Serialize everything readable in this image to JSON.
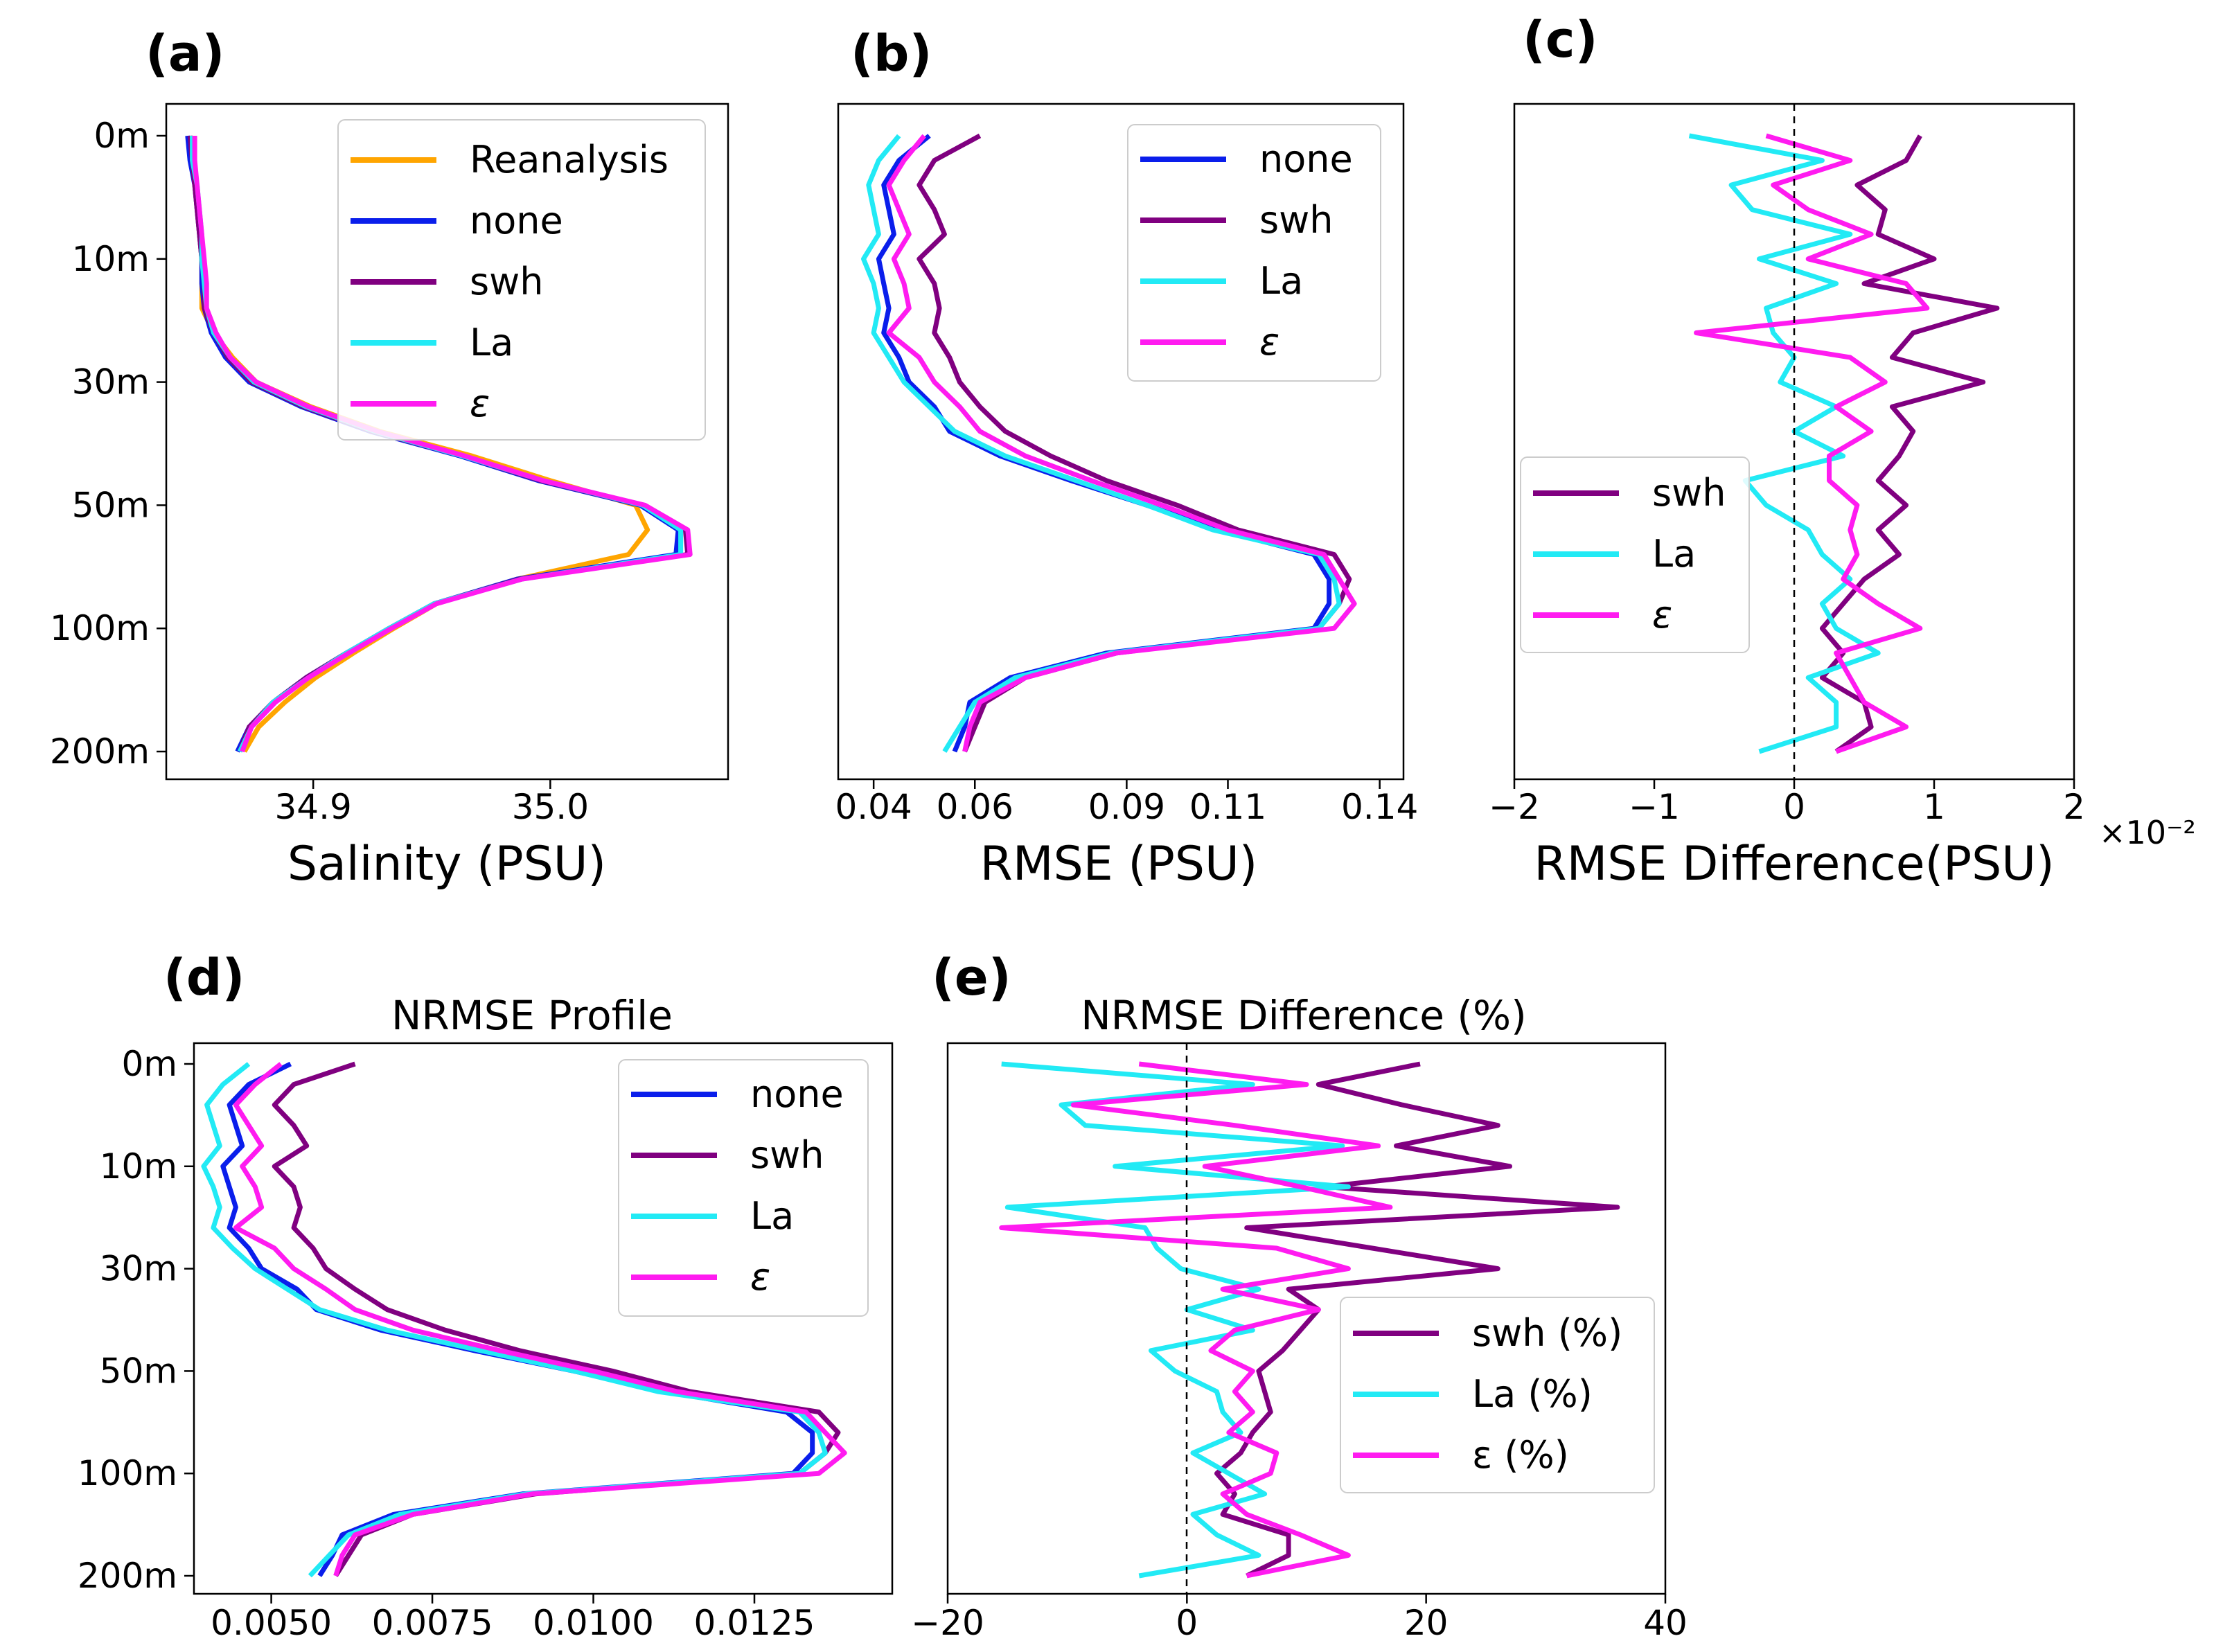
{
  "depth_ticks": [
    "0m",
    "10m",
    "30m",
    "50m",
    "100m",
    "200m"
  ],
  "colors": {
    "Reanalysis": "#FFA500",
    "none": "#0A1EEB",
    "swh": "#800080",
    "La": "#22EAF5",
    "epsilon": "#FF1BF0",
    "zero_line": "#000000"
  },
  "chart_data": [
    {
      "panel": "a",
      "panel_label": "(a)",
      "type": "line",
      "title": "",
      "xlabel": "Salinity (PSU)",
      "ylabel": "",
      "xlim": [
        34.838,
        35.075
      ],
      "xticks": [
        34.9,
        35.0
      ],
      "xtick_labels": [
        "34.9",
        "35.0"
      ],
      "y_index_range": [
        0,
        25
      ],
      "legend": "upper right",
      "legend_entries": [
        "Reanalysis",
        "none",
        "swh",
        "La",
        "ε"
      ],
      "series": [
        {
          "name": "Reanalysis",
          "x": [
            34.849,
            34.849,
            34.85,
            34.851,
            34.852,
            34.853,
            34.853,
            34.853,
            34.858,
            34.866,
            34.876,
            34.899,
            34.928,
            34.967,
            35.0,
            35.036,
            35.041,
            35.033,
            34.986,
            34.952,
            34.934,
            34.917,
            34.901,
            34.888,
            34.877,
            34.871
          ]
        },
        {
          "name": "none",
          "x": [
            34.847,
            34.848,
            34.85,
            34.851,
            34.852,
            34.853,
            34.853,
            34.854,
            34.857,
            34.863,
            34.873,
            34.895,
            34.924,
            34.962,
            34.995,
            35.038,
            35.054,
            35.053,
            34.986,
            34.951,
            34.932,
            34.914,
            34.897,
            34.883,
            34.873,
            34.868
          ]
        },
        {
          "name": "swh",
          "x": [
            34.848,
            34.849,
            34.85,
            34.851,
            34.852,
            34.853,
            34.854,
            34.854,
            34.858,
            34.864,
            34.874,
            34.896,
            34.925,
            34.963,
            34.996,
            35.039,
            35.057,
            35.058,
            34.987,
            34.951,
            34.932,
            34.914,
            34.897,
            34.883,
            34.873,
            34.869
          ]
        },
        {
          "name": "La",
          "x": [
            34.849,
            34.849,
            34.851,
            34.852,
            34.853,
            34.853,
            34.854,
            34.855,
            34.858,
            34.865,
            34.875,
            34.897,
            34.926,
            34.963,
            34.997,
            35.039,
            35.055,
            35.055,
            34.988,
            34.951,
            34.932,
            34.914,
            34.898,
            34.883,
            34.874,
            34.869
          ]
        },
        {
          "name": "ε",
          "x": [
            34.85,
            34.85,
            34.851,
            34.852,
            34.853,
            34.854,
            34.855,
            34.855,
            34.859,
            34.865,
            34.876,
            34.898,
            34.927,
            34.964,
            34.997,
            35.04,
            35.058,
            35.059,
            34.988,
            34.952,
            34.933,
            34.915,
            34.898,
            34.884,
            34.874,
            34.87
          ]
        }
      ]
    },
    {
      "panel": "b",
      "panel_label": "(b)",
      "type": "line",
      "title": "",
      "xlabel": "RMSE (PSU)",
      "ylabel": "",
      "xlim": [
        0.033,
        0.1447
      ],
      "xticks": [
        0.04,
        0.06,
        0.09,
        0.11,
        0.14
      ],
      "xtick_labels": [
        "0.04",
        "0.06",
        "0.09",
        "0.11",
        "0.14"
      ],
      "y_index_range": [
        0,
        25
      ],
      "legend": "upper right",
      "legend_entries": [
        "none",
        "swh",
        "La",
        "ε"
      ],
      "series": [
        {
          "name": "none",
          "x": [
            0.051,
            0.045,
            0.042,
            0.043,
            0.044,
            0.041,
            0.042,
            0.043,
            0.042,
            0.045,
            0.047,
            0.052,
            0.055,
            0.065,
            0.079,
            0.094,
            0.108,
            0.127,
            0.13,
            0.13,
            0.127,
            0.086,
            0.067,
            0.059,
            0.058,
            0.056
          ]
        },
        {
          "name": "swh",
          "x": [
            0.061,
            0.052,
            0.049,
            0.052,
            0.054,
            0.049,
            0.052,
            0.053,
            0.052,
            0.055,
            0.057,
            0.061,
            0.066,
            0.075,
            0.086,
            0.1,
            0.112,
            0.131,
            0.134,
            0.132,
            0.128,
            0.088,
            0.07,
            0.062,
            0.06,
            0.058
          ]
        },
        {
          "name": "La",
          "x": [
            0.045,
            0.041,
            0.039,
            0.04,
            0.041,
            0.038,
            0.04,
            0.041,
            0.04,
            0.043,
            0.046,
            0.051,
            0.056,
            0.066,
            0.08,
            0.094,
            0.107,
            0.128,
            0.131,
            0.132,
            0.128,
            0.087,
            0.068,
            0.06,
            0.057,
            0.054
          ]
        },
        {
          "name": "ε",
          "x": [
            0.05,
            0.046,
            0.043,
            0.045,
            0.047,
            0.044,
            0.046,
            0.047,
            0.043,
            0.049,
            0.052,
            0.057,
            0.061,
            0.07,
            0.083,
            0.097,
            0.11,
            0.129,
            0.132,
            0.135,
            0.131,
            0.088,
            0.07,
            0.061,
            0.059,
            0.058
          ]
        }
      ]
    },
    {
      "panel": "c",
      "panel_label": "(c)",
      "type": "line",
      "title": "",
      "xlabel": "RMSE Difference(PSU)",
      "ylabel": "",
      "x_scale_note": "×10⁻²",
      "xlim": [
        -2,
        2
      ],
      "xticks": [
        -2,
        -1,
        0,
        1,
        2
      ],
      "xtick_labels": [
        "−2",
        "−1",
        "0",
        "1",
        "2"
      ],
      "zero_line": true,
      "y_index_range": [
        0,
        25
      ],
      "legend": "center left",
      "legend_entries": [
        "swh",
        "La",
        "ε"
      ],
      "series": [
        {
          "name": "swh",
          "x": [
            0.9,
            0.8,
            0.45,
            0.65,
            0.6,
            1.0,
            0.5,
            1.45,
            0.85,
            0.7,
            1.35,
            0.7,
            0.85,
            0.75,
            0.6,
            0.8,
            0.6,
            0.75,
            0.5,
            0.35,
            0.2,
            0.35,
            0.2,
            0.5,
            0.55,
            0.3
          ]
        },
        {
          "name": "La",
          "x": [
            -0.75,
            0.2,
            -0.45,
            -0.3,
            0.4,
            -0.25,
            0.3,
            -0.2,
            -0.15,
            0.0,
            -0.1,
            0.3,
            0.0,
            0.35,
            -0.35,
            -0.2,
            0.1,
            0.2,
            0.4,
            0.2,
            0.3,
            0.6,
            0.1,
            0.3,
            0.3,
            -0.25
          ]
        },
        {
          "name": "ε",
          "x": [
            -0.2,
            0.4,
            -0.15,
            0.1,
            0.55,
            0.1,
            0.8,
            0.95,
            -0.7,
            0.4,
            0.65,
            0.3,
            0.55,
            0.25,
            0.25,
            0.45,
            0.4,
            0.45,
            0.35,
            0.6,
            0.9,
            0.3,
            0.4,
            0.5,
            0.8,
            0.3
          ]
        }
      ]
    },
    {
      "panel": "d",
      "panel_label": "(d)",
      "type": "line",
      "title": "NRMSE Profile",
      "xlabel": "",
      "ylabel": "",
      "xlim": [
        0.0038,
        0.01464
      ],
      "xticks": [
        0.005,
        0.0075,
        0.01,
        0.0125
      ],
      "xtick_labels": [
        "0.0050",
        "0.0075",
        "0.0100",
        "0.0125"
      ],
      "y_index_range": [
        0,
        25
      ],
      "legend": "upper right",
      "legend_entries": [
        "none",
        "swh",
        "La",
        "ε"
      ],
      "series": [
        {
          "name": "none",
          "x": [
            0.0053,
            0.00465,
            0.00435,
            0.00445,
            0.00455,
            0.00425,
            0.00435,
            0.00445,
            0.00435,
            0.00465,
            0.00485,
            0.0054,
            0.0057,
            0.0067,
            0.00815,
            0.0097,
            0.0111,
            0.013,
            0.0134,
            0.0134,
            0.0131,
            0.0089,
            0.0069,
            0.0061,
            0.00595,
            0.00575
          ]
        },
        {
          "name": "swh",
          "x": [
            0.0063,
            0.00535,
            0.00505,
            0.00535,
            0.00555,
            0.00505,
            0.00535,
            0.00545,
            0.00535,
            0.00565,
            0.00585,
            0.0063,
            0.0068,
            0.0077,
            0.00885,
            0.0103,
            0.0115,
            0.0135,
            0.0138,
            0.0136,
            0.0132,
            0.0091,
            0.0072,
            0.0064,
            0.0062,
            0.006
          ]
        },
        {
          "name": "La",
          "x": [
            0.00465,
            0.00425,
            0.004,
            0.0041,
            0.0042,
            0.00395,
            0.0041,
            0.0042,
            0.0041,
            0.0044,
            0.00475,
            0.00525,
            0.00575,
            0.0068,
            0.00825,
            0.0097,
            0.011,
            0.0132,
            0.0135,
            0.0136,
            0.0132,
            0.00895,
            0.007,
            0.0062,
            0.0059,
            0.0056
          ]
        },
        {
          "name": "ε",
          "x": [
            0.00515,
            0.00475,
            0.00445,
            0.00465,
            0.00485,
            0.00455,
            0.00475,
            0.00485,
            0.00445,
            0.00505,
            0.00535,
            0.00585,
            0.0063,
            0.0072,
            0.00855,
            0.01,
            0.0113,
            0.0133,
            0.0136,
            0.0139,
            0.0135,
            0.00905,
            0.0072,
            0.0063,
            0.0061,
            0.006
          ]
        }
      ]
    },
    {
      "panel": "e",
      "panel_label": "(e)",
      "type": "line",
      "title": "NRMSE Difference (%)",
      "xlabel": "",
      "ylabel": "",
      "xlim": [
        -20,
        40
      ],
      "xticks": [
        -20,
        0,
        20,
        40
      ],
      "xtick_labels": [
        "−20",
        "0",
        "20",
        "40"
      ],
      "zero_line": true,
      "y_index_range": [
        0,
        25
      ],
      "legend": "center right",
      "legend_entries": [
        "swh (%)",
        "La (%)",
        "ε (%)"
      ],
      "series": [
        {
          "name": "swh (%)",
          "x": [
            19.5,
            11.0,
            18.0,
            26.0,
            17.5,
            27.0,
            11.5,
            36.0,
            5.0,
            15.5,
            26.0,
            8.5,
            11.0,
            9.5,
            8.0,
            6.0,
            6.5,
            7.0,
            5.5,
            4.5,
            2.5,
            4.0,
            3.0,
            8.5,
            8.5,
            5.0
          ]
        },
        {
          "name": "La (%)",
          "x": [
            -15.5,
            5.5,
            -10.5,
            -8.5,
            13.0,
            -6.0,
            13.5,
            -15.0,
            -3.5,
            -2.5,
            -0.5,
            6.0,
            0.0,
            5.5,
            -3.0,
            -1.0,
            2.5,
            3.0,
            4.5,
            0.5,
            3.5,
            6.5,
            0.5,
            2.5,
            6.0,
            -4.0
          ]
        },
        {
          "name": "ε (%)",
          "x": [
            -4.0,
            10.0,
            -9.5,
            4.0,
            16.0,
            1.5,
            9.5,
            17.0,
            -15.5,
            7.5,
            13.5,
            3.0,
            11.0,
            4.0,
            2.0,
            5.5,
            4.0,
            5.5,
            3.5,
            7.5,
            7.0,
            3.0,
            5.0,
            9.5,
            13.5,
            5.0
          ]
        }
      ]
    }
  ]
}
